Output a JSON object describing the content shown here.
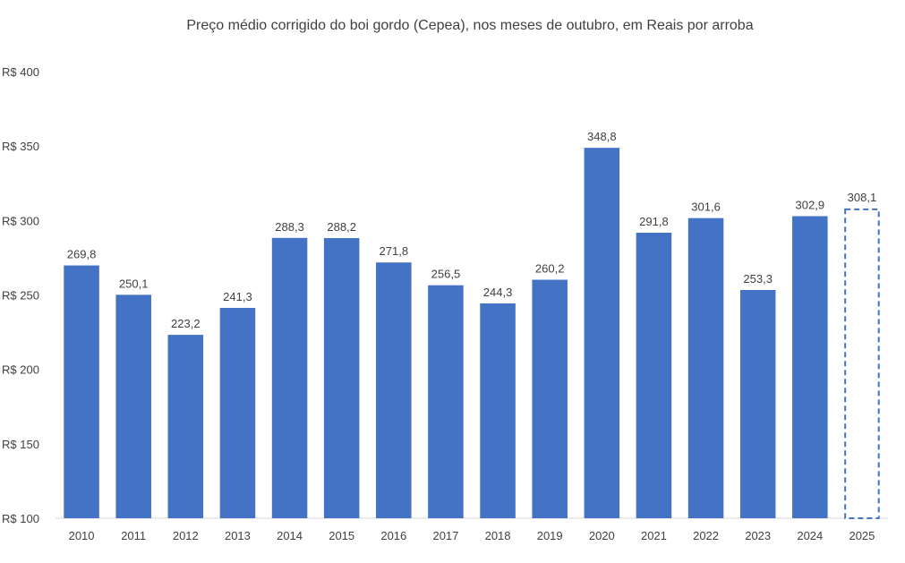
{
  "chart_data": {
    "type": "bar",
    "title": "Preço médio corrigido do boi gordo (Cepea), nos meses de outubro, em Reais por arroba",
    "categories": [
      "2010",
      "2011",
      "2012",
      "2013",
      "2014",
      "2015",
      "2016",
      "2017",
      "2018",
      "2019",
      "2020",
      "2021",
      "2022",
      "2023",
      "2024",
      "2025"
    ],
    "values": [
      269.8,
      250.1,
      223.2,
      241.3,
      288.3,
      288.2,
      271.8,
      256.5,
      244.3,
      260.2,
      348.8,
      291.8,
      301.6,
      253.3,
      302.9,
      308.1
    ],
    "value_labels": [
      "269,8",
      "250,1",
      "223,2",
      "241,3",
      "288,3",
      "288,2",
      "271,8",
      "256,5",
      "244,3",
      "260,2",
      "348,8",
      "291,8",
      "301,6",
      "253,3",
      "302,9",
      "308,1"
    ],
    "ylim": [
      100,
      400
    ],
    "yticks": [
      100,
      150,
      200,
      250,
      300,
      350,
      400
    ],
    "ytick_labels": [
      "R$ 100",
      "R$ 150",
      "R$ 200",
      "R$ 250",
      "R$ 300",
      "R$ 350",
      "R$ 400"
    ],
    "grid": false,
    "legend": "none",
    "bar_color": "#4472C4",
    "highlight_style": "dashed-outline",
    "highlight_categories": [
      "2025"
    ]
  }
}
